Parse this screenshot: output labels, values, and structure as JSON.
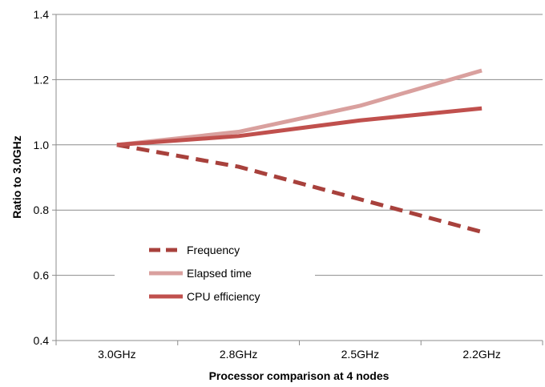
{
  "chart_data": {
    "type": "line",
    "categories": [
      "3.0GHz",
      "2.8GHz",
      "2.5GHz",
      "2.2GHz"
    ],
    "xlabel": "Processor comparison at 4  nodes",
    "ylabel": "Ratio to 3.0GHz",
    "ylim": [
      0.4,
      1.4
    ],
    "yticks": [
      "0.4",
      "0.6",
      "0.8",
      "1.0",
      "1.2",
      "1.4"
    ],
    "grid": true,
    "legend_position": "lower-left",
    "series": [
      {
        "name": "Frequency",
        "values": [
          1.0,
          0.933,
          0.833,
          0.733
        ],
        "color": "#a8413c",
        "dash": true
      },
      {
        "name": "Elapsed time",
        "values": [
          1.0,
          1.04,
          1.12,
          1.228
        ],
        "color": "#d9a09e",
        "dash": false
      },
      {
        "name": "CPU efficiency",
        "values": [
          1.0,
          1.027,
          1.075,
          1.112
        ],
        "color": "#c0504d",
        "dash": false
      }
    ]
  }
}
